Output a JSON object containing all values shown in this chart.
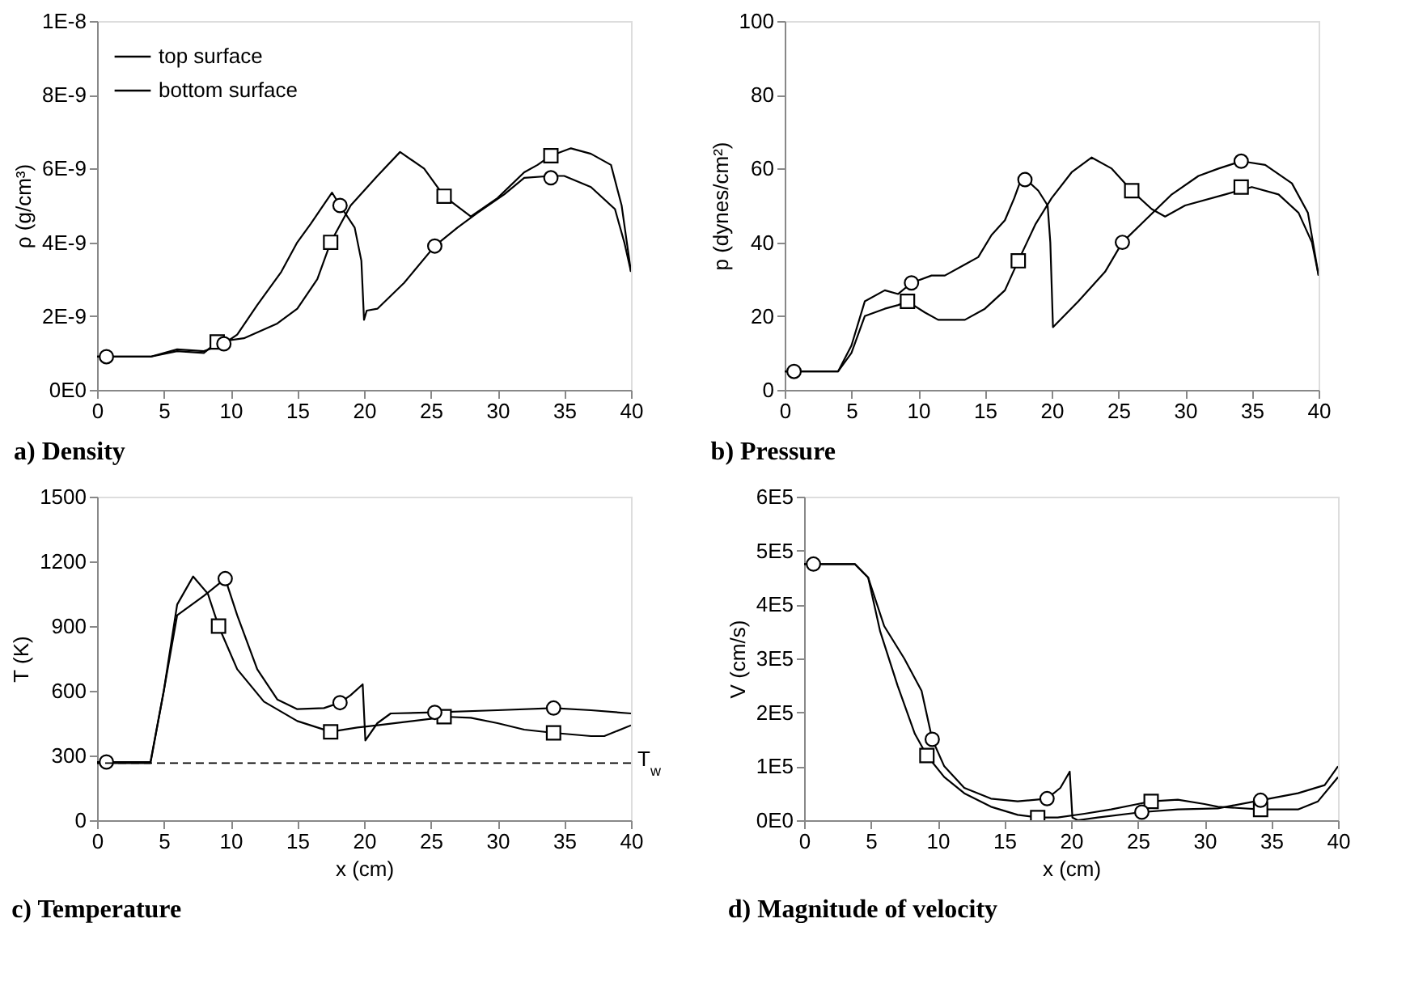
{
  "chart_data": [
    {
      "type": "line",
      "title": "a) Density",
      "ylabel": "ρ (g/cm³)",
      "xlim": [
        0,
        40
      ],
      "xticks": [
        0,
        5,
        10,
        15,
        20,
        25,
        30,
        35,
        40
      ],
      "ylim": [
        0,
        1e-08
      ],
      "yticks": [
        {
          "value": 0,
          "label": "0E0"
        },
        {
          "value": 2e-09,
          "label": "2E-9"
        },
        {
          "value": 4e-09,
          "label": "4E-9"
        },
        {
          "value": 6e-09,
          "label": "6E-9"
        },
        {
          "value": 8e-09,
          "label": "8E-9"
        },
        {
          "value": 1e-08,
          "label": "1E-8"
        }
      ],
      "grid": false,
      "legend": "top left",
      "line_style": "solid",
      "series": [
        {
          "name": "top surface",
          "color": "#000000",
          "x": [
            0,
            4,
            6,
            8,
            9,
            11,
            13.5,
            15,
            16.5,
            17.5,
            19,
            21,
            22.7,
            24.5,
            26,
            28,
            30,
            32,
            33,
            34,
            35.5,
            37,
            38.5,
            39.3,
            40
          ],
          "values": [
            9e-10,
            9e-10,
            1.05e-09,
            1e-09,
            1.3e-09,
            1.4e-09,
            1.8e-09,
            2.2e-09,
            3e-09,
            4e-09,
            5e-09,
            5.8e-09,
            6.45e-09,
            6e-09,
            5.25e-09,
            4.7e-09,
            5.2e-09,
            5.9e-09,
            6.1e-09,
            6.35e-09,
            6.55e-09,
            6.4e-09,
            6.1e-09,
            5e-09,
            3.2e-09
          ]
        },
        {
          "name": "bottom surface",
          "color": "#000000",
          "x": [
            0,
            4,
            6,
            8,
            9.5,
            10.5,
            12,
            13.8,
            15,
            16,
            17.6,
            18.2,
            19.3,
            19.8,
            20,
            20.2,
            21,
            23,
            25.3,
            27,
            28.5,
            30.5,
            32,
            34,
            35,
            37,
            38.8,
            39.5,
            40
          ],
          "values": [
            9e-10,
            9e-10,
            1.1e-09,
            1.05e-09,
            1.25e-09,
            1.5e-09,
            2.3e-09,
            3.2e-09,
            4e-09,
            4.5e-09,
            5.35e-09,
            5e-09,
            4.4e-09,
            3.5e-09,
            1.9e-09,
            2.15e-09,
            2.2e-09,
            2.9e-09,
            3.9e-09,
            4.4e-09,
            4.8e-09,
            5.3e-09,
            5.75e-09,
            5.8e-09,
            5.8e-09,
            5.5e-09,
            4.9e-09,
            4e-09,
            3.2e-09
          ]
        },
        {
          "type": "scatter",
          "marker": "square",
          "color": "#000000",
          "x": [
            9,
            17.5,
            26,
            34
          ],
          "values": [
            1.3e-09,
            4e-09,
            5.25e-09,
            6.35e-09
          ]
        },
        {
          "type": "scatter",
          "marker": "circle",
          "color": "#000000",
          "x": [
            0.7,
            9.5,
            18.2,
            25.3,
            34
          ],
          "values": [
            9e-10,
            1.25e-09,
            5e-09,
            3.9e-09,
            5.75e-09
          ]
        }
      ]
    },
    {
      "type": "line",
      "title": "b) Pressure",
      "ylabel": "p (dynes/cm²)",
      "xlim": [
        0,
        40
      ],
      "xticks": [
        0,
        5,
        10,
        15,
        20,
        25,
        30,
        35,
        40
      ],
      "ylim": [
        0,
        100
      ],
      "yticks": [
        0,
        20,
        40,
        60,
        80,
        100
      ],
      "grid": false,
      "legend": false,
      "line_style": "solid",
      "series": [
        {
          "color": "#000000",
          "x": [
            0,
            4,
            5,
            6,
            7.5,
            8.5,
            9.2,
            10.5,
            11.5,
            13.5,
            15,
            16.5,
            17.5,
            18.8,
            20,
            21.5,
            23,
            24.5,
            26,
            27.5,
            28.5,
            30,
            33,
            35,
            37,
            38.5,
            39.5,
            40
          ],
          "values": [
            5,
            5,
            10,
            20,
            22,
            23,
            24,
            21,
            19,
            19,
            22,
            27,
            35,
            45,
            52,
            59,
            63,
            60,
            54,
            49,
            47,
            50,
            53,
            55,
            53,
            48,
            40,
            31
          ]
        },
        {
          "color": "#000000",
          "x": [
            0,
            4,
            5,
            6,
            7.5,
            8.5,
            9.5,
            11,
            12,
            13.5,
            14.5,
            15.5,
            16.5,
            17.2,
            17.8,
            19,
            19.7,
            19.9,
            20.1,
            22,
            24,
            25.3,
            27,
            29,
            31,
            32.5,
            34.2,
            36,
            38,
            39.2,
            40
          ],
          "values": [
            5,
            5,
            12,
            24,
            27,
            26,
            29,
            31,
            31,
            34,
            36,
            42,
            46,
            52,
            58,
            54,
            50,
            40,
            17,
            24,
            32,
            40,
            46,
            53,
            58,
            60,
            62,
            61,
            56,
            48,
            31
          ]
        },
        {
          "type": "scatter",
          "marker": "square",
          "color": "#000000",
          "x": [
            9.2,
            17.5,
            26,
            34.2
          ],
          "values": [
            24,
            35,
            54,
            55
          ]
        },
        {
          "type": "scatter",
          "marker": "circle",
          "color": "#000000",
          "x": [
            0.7,
            9.5,
            18,
            25.3,
            34.2
          ],
          "values": [
            5,
            29,
            57,
            40,
            62
          ]
        }
      ]
    },
    {
      "type": "line",
      "title": "c) Temperature",
      "xlabel": "x (cm)",
      "ylabel": "T (K)",
      "xlim": [
        0,
        40
      ],
      "xticks": [
        0,
        5,
        10,
        15,
        20,
        25,
        30,
        35,
        40
      ],
      "ylim": [
        0,
        1500
      ],
      "yticks": [
        0,
        300,
        600,
        900,
        1200,
        1500
      ],
      "grid": false,
      "legend": false,
      "line_style": "solid",
      "ref_lines": [
        {
          "axis": "y",
          "value": 265,
          "label": "T$_{w}$",
          "line_style": "dashed",
          "color": "#000000"
        }
      ],
      "series": [
        {
          "color": "#000000",
          "x": [
            0,
            4,
            5,
            6,
            7.2,
            8.3,
            9.1,
            10.5,
            12.5,
            15,
            17.5,
            19.5,
            21,
            23,
            25,
            26,
            28,
            30,
            32,
            34.2,
            37,
            38,
            40
          ],
          "values": [
            265,
            265,
            600,
            1000,
            1130,
            1050,
            900,
            700,
            550,
            460,
            410,
            430,
            440,
            455,
            470,
            480,
            475,
            450,
            420,
            405,
            390,
            390,
            440
          ]
        },
        {
          "color": "#000000",
          "x": [
            0,
            4,
            5,
            6,
            8,
            9,
            9.6,
            10.5,
            12,
            13.5,
            15,
            17,
            18.2,
            19,
            19.9,
            20.1,
            21,
            22,
            25.3,
            30,
            34.2,
            37,
            40
          ],
          "values": [
            270,
            270,
            600,
            950,
            1040,
            1090,
            1120,
            950,
            700,
            560,
            515,
            520,
            545,
            580,
            630,
            370,
            450,
            495,
            500,
            510,
            520,
            510,
            495
          ]
        },
        {
          "type": "scatter",
          "marker": "square",
          "color": "#000000",
          "x": [
            9.1,
            17.5,
            26,
            34.2
          ],
          "values": [
            900,
            410,
            480,
            405
          ]
        },
        {
          "type": "scatter",
          "marker": "circle",
          "color": "#000000",
          "x": [
            0.7,
            9.6,
            18.2,
            25.3,
            34.2
          ],
          "values": [
            270,
            1120,
            545,
            500,
            520
          ]
        }
      ]
    },
    {
      "type": "line",
      "title": "d) Magnitude of velocity",
      "xlabel": "x (cm)",
      "ylabel": "V (cm/s)",
      "xlim": [
        0,
        40
      ],
      "xticks": [
        0,
        5,
        10,
        15,
        20,
        25,
        30,
        35,
        40
      ],
      "ylim": [
        0,
        600000
      ],
      "yticks": [
        {
          "value": 0,
          "label": "0E0"
        },
        {
          "value": 100000,
          "label": "1E5"
        },
        {
          "value": 200000,
          "label": "2E5"
        },
        {
          "value": 300000,
          "label": "3E5"
        },
        {
          "value": 400000,
          "label": "4E5"
        },
        {
          "value": 500000,
          "label": "5E5"
        },
        {
          "value": 600000,
          "label": "6E5"
        }
      ],
      "grid": false,
      "legend": false,
      "line_style": "solid",
      "series": [
        {
          "color": "#000000",
          "x": [
            0,
            3.8,
            4.8,
            5.7,
            7,
            8.3,
            9.2,
            10.5,
            12,
            14,
            16,
            17.5,
            19,
            21,
            23,
            25,
            26,
            28,
            30,
            31,
            34.2,
            37,
            38.5,
            40
          ],
          "values": [
            475000,
            475000,
            450000,
            350000,
            250000,
            160000,
            120000,
            80000,
            50000,
            25000,
            10000,
            5000,
            5000,
            12000,
            20000,
            30000,
            35000,
            38000,
            30000,
            25000,
            20000,
            20000,
            35000,
            80000
          ]
        },
        {
          "color": "#000000",
          "x": [
            0,
            3.8,
            4.8,
            6,
            7.5,
            8.8,
            9.6,
            10.5,
            12,
            14,
            16,
            18.2,
            19.2,
            19.9,
            20.1,
            20.5,
            22,
            25.3,
            28,
            31,
            34.2,
            37,
            39,
            40
          ],
          "values": [
            475000,
            475000,
            450000,
            360000,
            300000,
            240000,
            150000,
            100000,
            60000,
            40000,
            35000,
            40000,
            60000,
            90000,
            5000,
            0,
            5000,
            15000,
            20000,
            22000,
            37000,
            50000,
            65000,
            100000
          ]
        },
        {
          "type": "scatter",
          "marker": "square",
          "color": "#000000",
          "x": [
            9.2,
            17.5,
            26,
            34.2
          ],
          "values": [
            120000,
            5000,
            35000,
            20000
          ]
        },
        {
          "type": "scatter",
          "marker": "circle",
          "color": "#000000",
          "x": [
            0.7,
            9.6,
            18.2,
            25.3,
            34.2
          ],
          "values": [
            475000,
            150000,
            40000,
            15000,
            37000
          ]
        }
      ]
    }
  ]
}
